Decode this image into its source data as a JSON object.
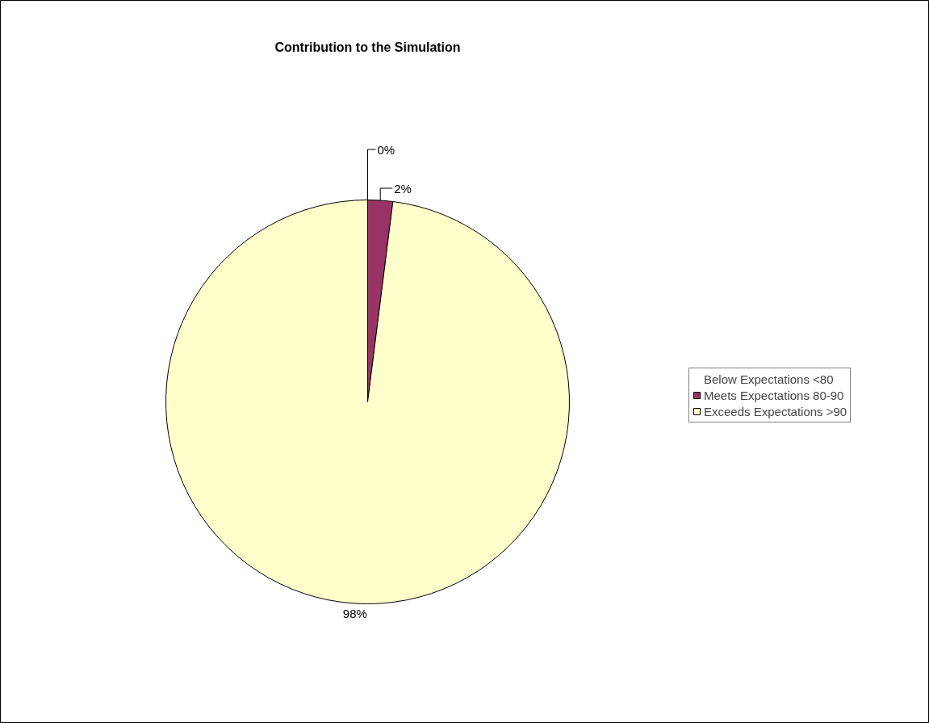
{
  "chart_data": {
    "type": "pie",
    "title": "Contribution to the Simulation",
    "categories": [
      "Below Expectations <80",
      "Meets Expectations 80-90",
      "Exceeds Expectations >90"
    ],
    "values": [
      0,
      2,
      98
    ],
    "colors": [
      "#9999ff",
      "#993366",
      "#ffffcc"
    ],
    "value_labels": [
      "0%",
      "2%",
      "98%"
    ],
    "legend": "right"
  }
}
